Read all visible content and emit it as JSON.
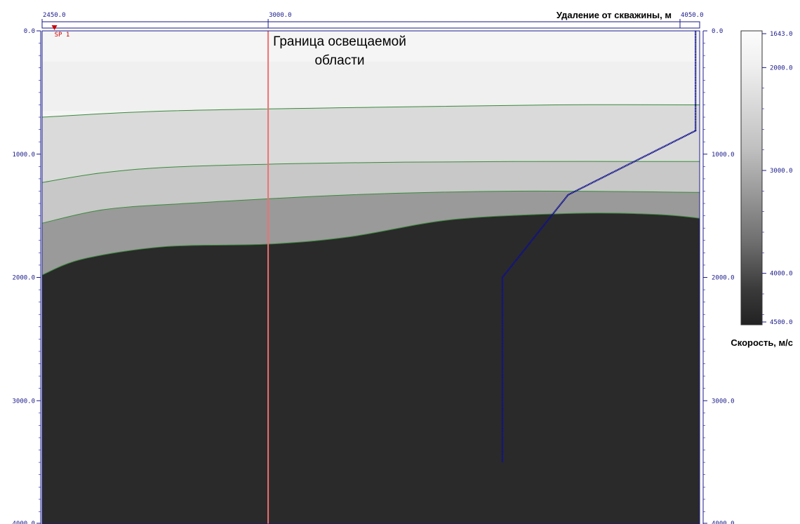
{
  "chart_data": {
    "type": "area",
    "x_axis": {
      "label": "Удаление от скважины, м",
      "range": [
        2450.0,
        4050.0
      ],
      "ticks": [
        2450.0,
        3000.0,
        4050.0
      ],
      "tick_labels": [
        "2450.0",
        "3000.0",
        "4050.0"
      ]
    },
    "y_axis": {
      "range": [
        0.0,
        4000.0
      ],
      "ticks": [
        0.0,
        1000.0,
        2000.0,
        3000.0,
        4000.0
      ],
      "tick_labels": [
        "0.0",
        "1000.0",
        "2000.0",
        "3000.0",
        "4000.0"
      ]
    },
    "colorbar": {
      "label": "Скорость, м/с",
      "tick_labels": [
        "1643.0",
        "2000.0",
        "3000.0",
        "4000.0",
        "4500.0"
      ],
      "min": 1643.0,
      "max": 4500.0
    },
    "layers": [
      {
        "name": "layer-1",
        "velocity": 1643,
        "color": "#f5f5f5"
      },
      {
        "name": "layer-2",
        "velocity": 1900,
        "color": "#ececec"
      },
      {
        "name": "layer-3",
        "velocity": 2100,
        "color": "#dadada"
      },
      {
        "name": "layer-4",
        "velocity": 2400,
        "color": "#c8c8c8"
      },
      {
        "name": "layer-5",
        "velocity": 3200,
        "color": "#9a9a9a"
      },
      {
        "name": "layer-6",
        "velocity": 4500,
        "color": "#2a2a2a"
      }
    ],
    "horizons": [
      {
        "name": "horizon-1",
        "points": [
          [
            2450,
            700
          ],
          [
            2750,
            650
          ],
          [
            3250,
            620
          ],
          [
            3700,
            600
          ],
          [
            4050,
            600
          ]
        ]
      },
      {
        "name": "horizon-2",
        "points": [
          [
            2450,
            1230
          ],
          [
            2600,
            1150
          ],
          [
            2800,
            1100
          ],
          [
            3200,
            1070
          ],
          [
            3600,
            1060
          ],
          [
            4050,
            1060
          ]
        ]
      },
      {
        "name": "horizon-3",
        "points": [
          [
            2450,
            1560
          ],
          [
            2600,
            1450
          ],
          [
            2800,
            1400
          ],
          [
            3200,
            1330
          ],
          [
            3600,
            1300
          ],
          [
            4050,
            1310
          ]
        ]
      },
      {
        "name": "horizon-4",
        "points": [
          [
            2450,
            1980
          ],
          [
            2550,
            1850
          ],
          [
            2750,
            1750
          ],
          [
            3000,
            1730
          ],
          [
            3200,
            1670
          ],
          [
            3450,
            1530
          ],
          [
            3750,
            1480
          ],
          [
            3950,
            1490
          ],
          [
            4050,
            1520
          ]
        ]
      }
    ],
    "well_trajectory": {
      "color": "#10108c",
      "points": [
        [
          4040,
          0
        ],
        [
          4040,
          810
        ],
        [
          3730,
          1330
        ],
        [
          3570,
          2000
        ],
        [
          3570,
          3500
        ]
      ]
    },
    "boundary_line": {
      "x": 3000,
      "color": "#f07070",
      "annotation": [
        "Граница освещаемой",
        "области"
      ]
    },
    "shot_point": {
      "x": 2480,
      "label": "SP 1",
      "color": "#cc0000"
    }
  }
}
